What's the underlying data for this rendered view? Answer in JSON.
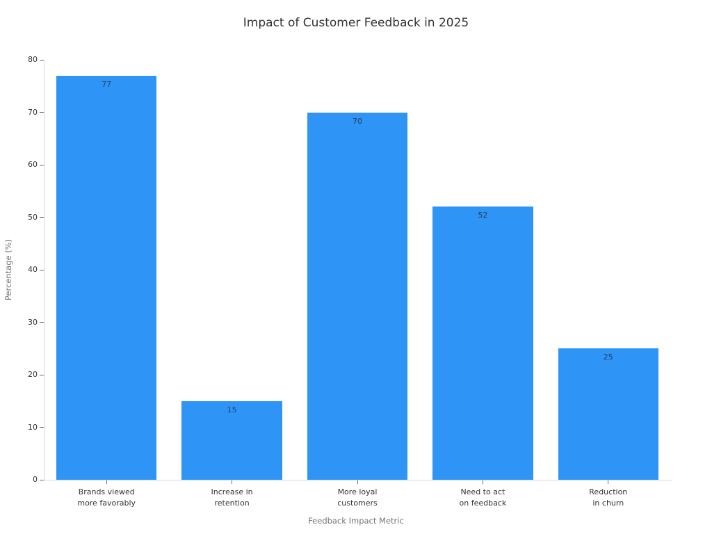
{
  "page": {
    "background": "#ffffff"
  },
  "chart_data": {
    "type": "bar",
    "title": "Impact of Customer Feedback in 2025",
    "xlabel": "Feedback Impact Metric",
    "ylabel": "Percentage (%)",
    "categories": [
      "Brands viewed\nmore favorably",
      "Increase in\nretention",
      "More loyal\ncustomers",
      "Need to act\non feedback",
      "Reduction\nin churn"
    ],
    "values": [
      77,
      15,
      70,
      52,
      25
    ],
    "bar_value_labels": [
      "77",
      "15",
      "70",
      "52",
      "25"
    ],
    "ylim": [
      0,
      80
    ],
    "yticks": [
      0,
      10,
      20,
      30,
      40,
      50,
      60,
      70,
      80
    ],
    "grid": false,
    "legend": "none",
    "value_label_position": "inside-top",
    "colors": {
      "bar": "#2E94F5",
      "bar_value_text": "#2a3f5f",
      "tick_label_text": "#333333",
      "axis_title_text": "#757575",
      "title_text": "#333333",
      "axis_line": "#d9d9d9",
      "tick_mark": "#666666",
      "background": "#ffffff"
    }
  }
}
